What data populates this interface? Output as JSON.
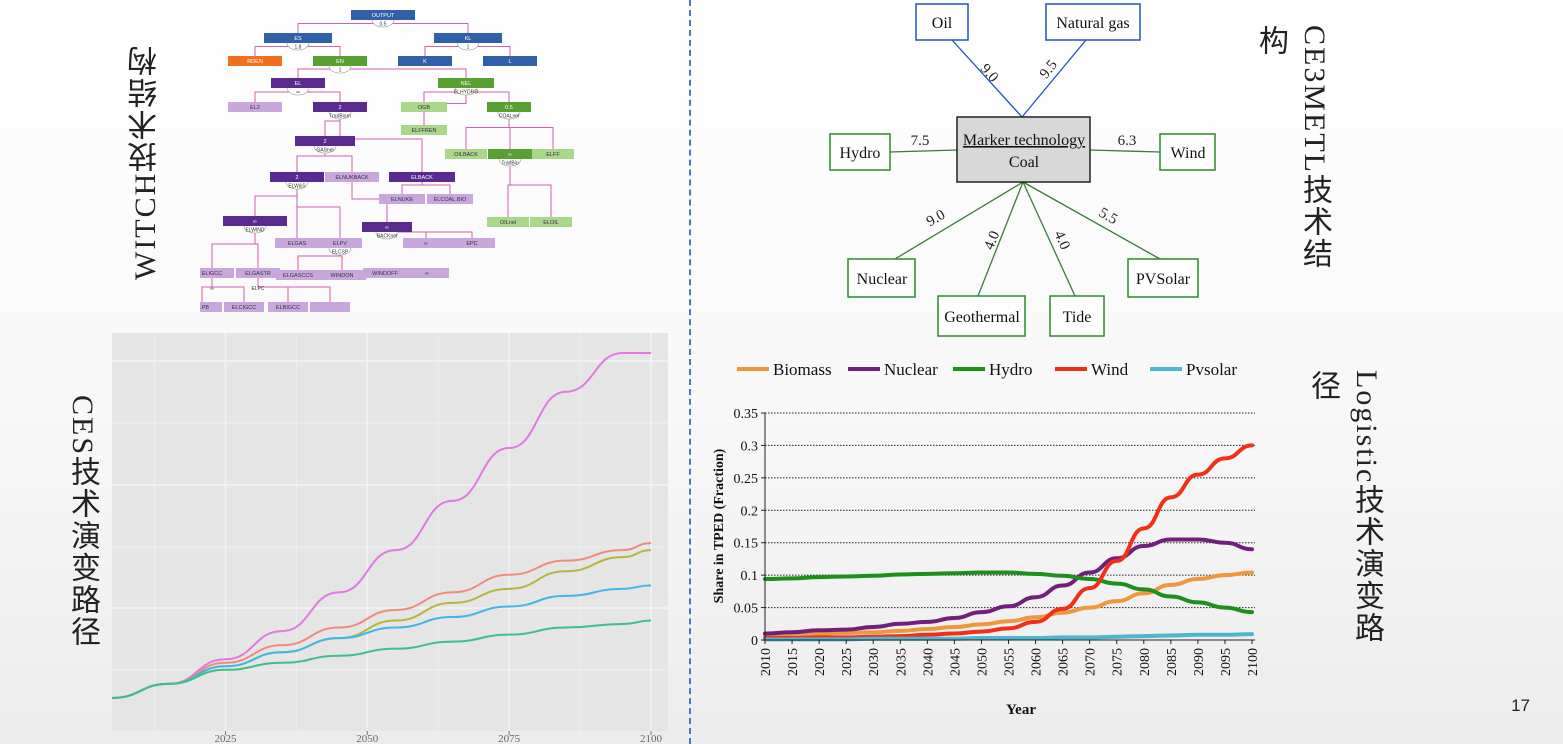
{
  "labels": {
    "witch": "WITCH技术结构",
    "ces": "CES技术演变路径",
    "ce3metl": "CE3METL技术结构",
    "logistic": "Logistic技术演变路径",
    "page_number": "17"
  },
  "witch_tree": {
    "nodes": [
      "OUTPUT",
      "0.5",
      "ES",
      "1.8",
      "KL",
      "1",
      "RDEN",
      "EN",
      "1",
      "K",
      "L",
      "EL",
      "∞",
      "NEL",
      "ELHYDRO",
      "EL2",
      "2",
      "TradBiom",
      "OGB",
      "0.5",
      "COALnel",
      "ELFFREN",
      "2",
      "GASnel",
      "OILBACK",
      "∞",
      "TradBio",
      "ELFF",
      "2",
      "ELW&S",
      "ELNUKBACK",
      "ELBACK",
      "ELNUKE",
      "ELCOAL.BIO",
      "∞",
      "ELWIND",
      "∞",
      "BACKnel",
      "OILnel",
      "ELOIL",
      "ELGAS",
      "ELPV",
      "ELCSP",
      "∞",
      "EPC",
      "ELIGCC",
      "ELGASTR",
      "ELGASCCS",
      "WINDON",
      "WINDOFF",
      "∞",
      "∞",
      "ELPC",
      "ELPB",
      "ELCIGCC",
      "ELBIGCC"
    ]
  },
  "ces_chart": {
    "x_ticks": [
      "2025",
      "2050",
      "2075",
      "2100"
    ]
  },
  "ce3metl": {
    "center_line1": "Marker technology",
    "center_line2": "Coal",
    "oil": "Oil",
    "gas": "Natural gas",
    "hydro": "Hydro",
    "wind": "Wind",
    "nuclear": "Nuclear",
    "geothermal": "Geothermal",
    "tide": "Tide",
    "pvsolar": "PVSolar",
    "w_oil": "9.0",
    "w_gas": "9.5",
    "w_hydro": "7.5",
    "w_wind": "6.3",
    "w_nuclear": "9.0",
    "w_geothermal": "4.0",
    "w_tide": "4.0",
    "w_pvsolar": "5.5"
  },
  "chart_data": [
    {
      "type": "line",
      "title": "",
      "xlabel": "",
      "ylabel": "",
      "x_ticks": [
        2025,
        2050,
        2075,
        2100
      ],
      "xlim": [
        2005,
        2103
      ],
      "ylim": [
        0,
        100
      ],
      "grid": true,
      "x": [
        2005,
        2015,
        2025,
        2035,
        2045,
        2055,
        2065,
        2075,
        2085,
        2095,
        2100
      ],
      "series": [
        {
          "color": "#e377e3",
          "values": [
            2,
            6,
            13,
            21,
            32,
            44,
            58,
            73,
            89,
            100,
            100
          ]
        },
        {
          "color": "#f08a7d",
          "values": [
            2,
            6,
            12,
            17,
            22,
            27,
            32,
            37,
            41,
            44,
            46
          ]
        },
        {
          "color": "#b5b63a",
          "values": [
            2,
            6,
            11,
            15,
            19,
            24,
            29,
            33,
            38,
            42,
            44
          ]
        },
        {
          "color": "#3fb6e8",
          "values": [
            2,
            6,
            11,
            15,
            19,
            22,
            25,
            28,
            31,
            33,
            34
          ]
        },
        {
          "color": "#3cbf88",
          "values": [
            2,
            6,
            10,
            12,
            14,
            16,
            18,
            20,
            22,
            23,
            24
          ]
        }
      ]
    },
    {
      "type": "line",
      "title": "",
      "xlabel": "Year",
      "ylabel": "Share in TPED  (Fraction)",
      "ylim": [
        0,
        0.35
      ],
      "y_ticks": [
        "0",
        "0.05",
        "0.1",
        "0.15",
        "0.2",
        "0.25",
        "0.3",
        "0.35"
      ],
      "grid": true,
      "legend": "top",
      "x": [
        2010,
        2015,
        2020,
        2025,
        2030,
        2035,
        2040,
        2045,
        2050,
        2055,
        2060,
        2065,
        2070,
        2075,
        2080,
        2085,
        2090,
        2095,
        2100
      ],
      "series": [
        {
          "name": "Biomass",
          "color": "#f0963c",
          "values": [
            0.008,
            0.009,
            0.01,
            0.011,
            0.012,
            0.014,
            0.017,
            0.02,
            0.024,
            0.029,
            0.035,
            0.042,
            0.05,
            0.06,
            0.072,
            0.085,
            0.094,
            0.1,
            0.104
          ]
        },
        {
          "name": "Nuclear",
          "color": "#70207a",
          "values": [
            0.01,
            0.012,
            0.015,
            0.016,
            0.02,
            0.025,
            0.028,
            0.034,
            0.043,
            0.052,
            0.066,
            0.084,
            0.104,
            0.126,
            0.145,
            0.155,
            0.155,
            0.15,
            0.14
          ]
        },
        {
          "name": "Hydro",
          "color": "#1c8f1c",
          "values": [
            0.094,
            0.095,
            0.097,
            0.098,
            0.099,
            0.101,
            0.102,
            0.103,
            0.104,
            0.104,
            0.102,
            0.099,
            0.094,
            0.087,
            0.078,
            0.067,
            0.058,
            0.05,
            0.043
          ]
        },
        {
          "name": "Wind",
          "color": "#f03018",
          "values": [
            0.003,
            0.003,
            0.004,
            0.004,
            0.005,
            0.006,
            0.008,
            0.01,
            0.013,
            0.018,
            0.028,
            0.048,
            0.08,
            0.122,
            0.172,
            0.22,
            0.255,
            0.28,
            0.3
          ]
        },
        {
          "name": "Pvsolar",
          "color": "#4fb6d0",
          "values": [
            0.001,
            0.001,
            0.001,
            0.001,
            0.002,
            0.002,
            0.002,
            0.002,
            0.003,
            0.003,
            0.003,
            0.004,
            0.004,
            0.005,
            0.006,
            0.007,
            0.008,
            0.008,
            0.009
          ]
        }
      ]
    }
  ]
}
